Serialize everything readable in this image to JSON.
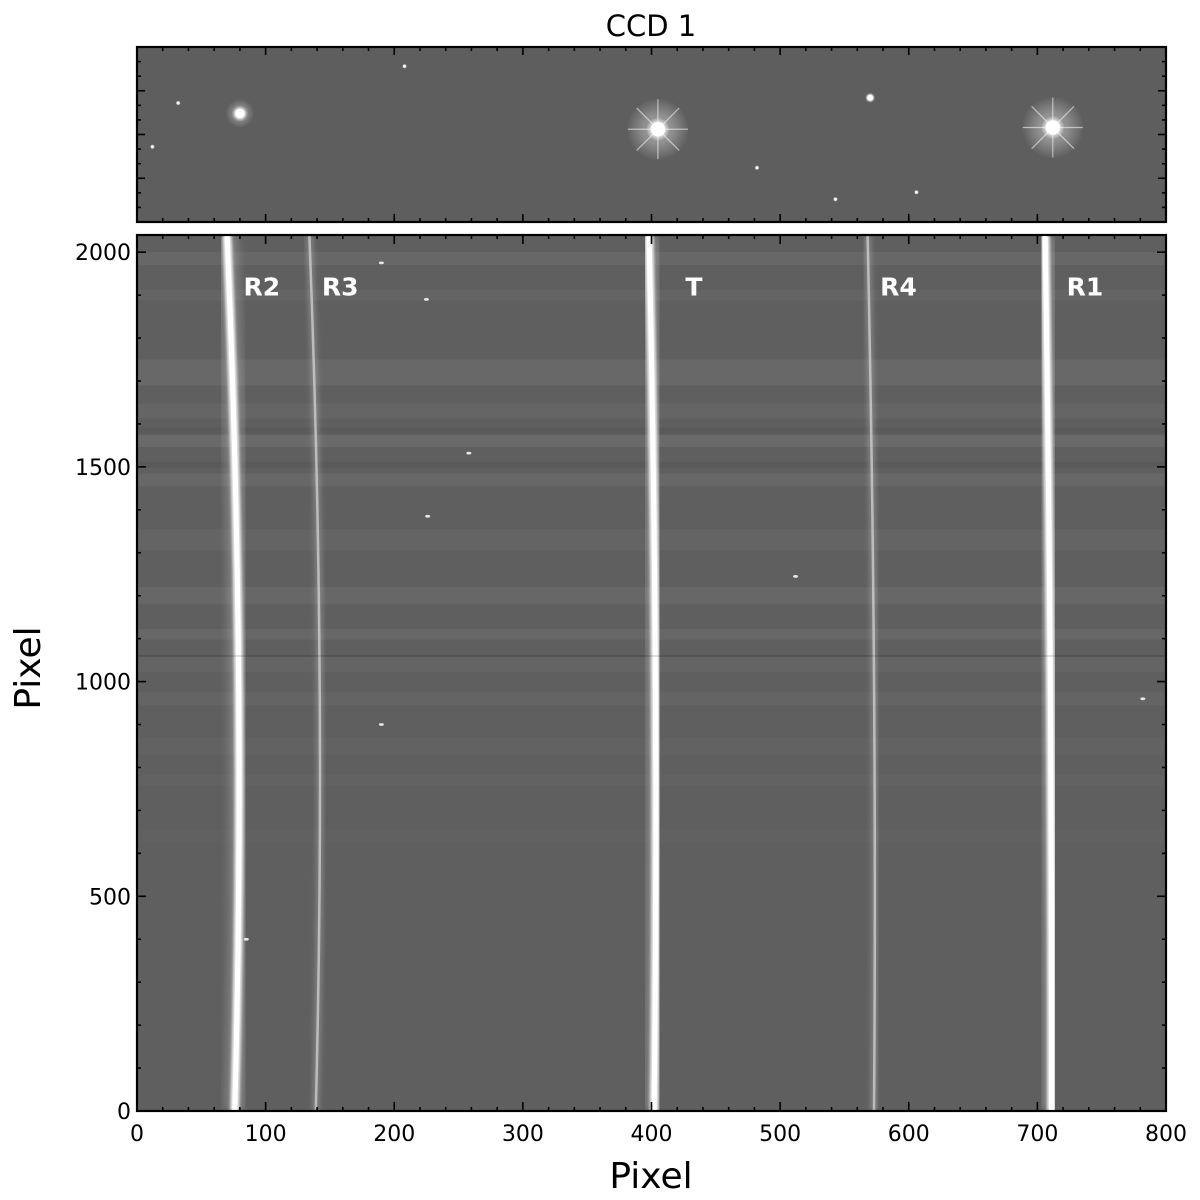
{
  "figure": {
    "top_panel": {
      "title": "CCD 1"
    }
  },
  "chart_data": {
    "type": "heatmap",
    "title": "",
    "xlabel": "Pixel",
    "ylabel": "Pixel",
    "xlim": [
      0,
      800
    ],
    "ylim": [
      0,
      2040
    ],
    "x_ticks": [
      0,
      100,
      200,
      300,
      400,
      500,
      600,
      700,
      800
    ],
    "y_ticks": [
      0,
      500,
      1000,
      1500,
      2000
    ],
    "colormap": "gray",
    "grid": false,
    "traces": [
      {
        "label": "R2",
        "brightness": "bright",
        "x_at_y0": 76,
        "x_at_y1000": 79,
        "x_at_y2040": 70,
        "label_x": 97,
        "label_y": 1920
      },
      {
        "label": "R3",
        "brightness": "faint",
        "x_at_y0": 139,
        "x_at_y1000": 142,
        "x_at_y2040": 134,
        "label_x": 158,
        "label_y": 1920
      },
      {
        "label": "T",
        "brightness": "bright",
        "x_at_y0": 402,
        "x_at_y1000": 403,
        "x_at_y2040": 398,
        "label_x": 433,
        "label_y": 1920
      },
      {
        "label": "R4",
        "brightness": "faint",
        "x_at_y0": 573,
        "x_at_y1000": 573,
        "x_at_y2040": 568,
        "label_x": 592,
        "label_y": 1920
      },
      {
        "label": "R1",
        "brightness": "bright",
        "x_at_y0": 711,
        "x_at_y1000": 710,
        "x_at_y2040": 706,
        "label_x": 737,
        "label_y": 1920
      }
    ],
    "top_image_stars": [
      {
        "x": 12,
        "y": 0.57,
        "size": "tiny"
      },
      {
        "x": 80,
        "y": 0.38,
        "size": "medium"
      },
      {
        "x": 405,
        "y": 0.47,
        "size": "large"
      },
      {
        "x": 570,
        "y": 0.29,
        "size": "small"
      },
      {
        "x": 712,
        "y": 0.46,
        "size": "large"
      },
      {
        "x": 482,
        "y": 0.69,
        "size": "tiny"
      },
      {
        "x": 208,
        "y": 0.11,
        "size": "tiny"
      },
      {
        "x": 32,
        "y": 0.32,
        "size": "tiny"
      },
      {
        "x": 606,
        "y": 0.83,
        "size": "tiny"
      },
      {
        "x": 543,
        "y": 0.87,
        "size": "tiny"
      }
    ]
  }
}
